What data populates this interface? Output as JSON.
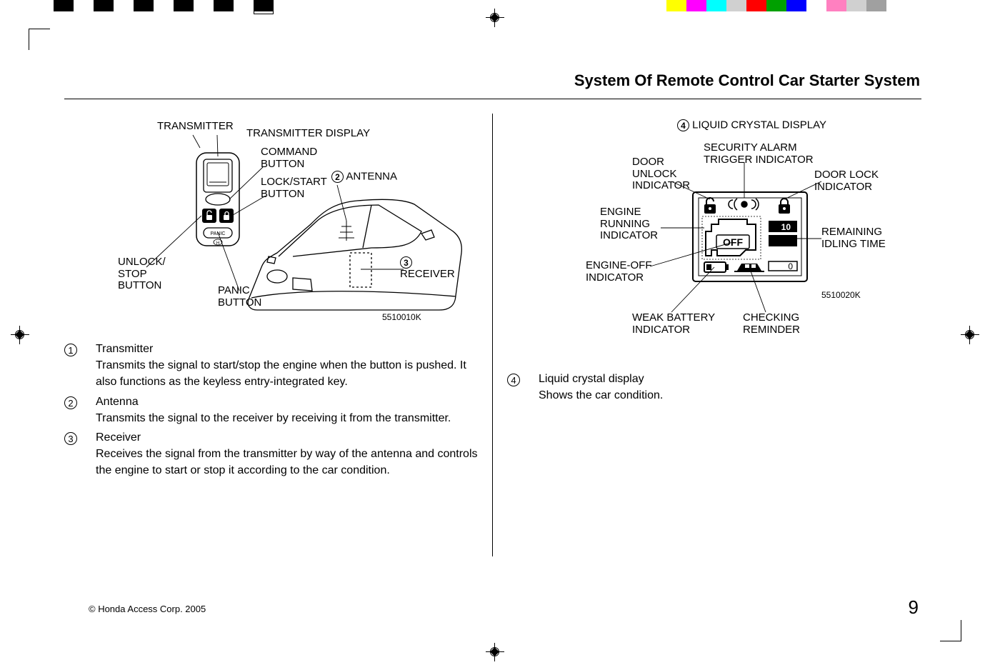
{
  "colorBarLeft": [
    "#000000",
    "#ffffff",
    "#000000",
    "#ffffff",
    "#000000",
    "#ffffff",
    "#000000",
    "#ffffff",
    "#000000",
    "#ffffff",
    "#000000"
  ],
  "colorBarRight": [
    "#ffff00",
    "#ff00ff",
    "#00ffff",
    "#d0d0d0",
    "#ff0000",
    "#00a000",
    "#0000ff",
    "#ffffff",
    "#ff80c0",
    "#d0d0d0",
    "#a0a0a0"
  ],
  "pageTitle": "System Of Remote Control Car Starter System",
  "figure1": {
    "code": "5510010K",
    "labels": {
      "transmitter": "TRANSMITTER",
      "transmitterDisplay": "TRANSMITTER DISPLAY",
      "commandButton": "COMMAND\nBUTTON",
      "lockStartButton": "LOCK/START\nBUTTON",
      "antenna": "ANTENNA",
      "receiver": "RECEIVER",
      "panicButton": "PANIC\nBUTTON",
      "unlockStopButton": "UNLOCK/\nSTOP\nBUTTON"
    },
    "nums": {
      "antenna": "2",
      "receiver": "3"
    },
    "panicText": "PANIC"
  },
  "figure2": {
    "code": "5510020K",
    "title": "LIQUID CRYSTAL DISPLAY",
    "titleNum": "4",
    "labels": {
      "doorUnlock": "DOOR\nUNLOCK\nINDICATOR",
      "securityAlarm": "SECURITY ALARM\nTRIGGER INDICATOR",
      "doorLock": "DOOR LOCK\nINDICATOR",
      "engineRunning": "ENGINE\nRUNNING\nINDICATOR",
      "remainingIdling": "REMAINING\nIDLING TIME",
      "engineOff": "ENGINE-OFF\nINDICATOR",
      "weakBattery": "WEAK BATTERY\nINDICATOR",
      "checkingReminder": "CHECKING\nREMINDER"
    },
    "offText": "OFF",
    "ten": "10",
    "zero": "0"
  },
  "list1": [
    {
      "num": "1",
      "title": "Transmitter",
      "desc": "Transmits the signal to start/stop the engine when the button is pushed.  It also functions as the keyless entry-integrated key."
    },
    {
      "num": "2",
      "title": "Antenna",
      "desc": "Transmits the signal to the receiver by receiving it from the transmitter."
    },
    {
      "num": "3",
      "title": "Receiver",
      "desc": "Receives the signal from the transmitter by way of the antenna and controls the engine to start or stop it according to the car condition."
    }
  ],
  "list2": [
    {
      "num": "4",
      "title": "Liquid crystal display",
      "desc": "Shows the car condition."
    }
  ],
  "footer": {
    "copyright": "© Honda Access Corp. 2005",
    "pageNumber": "9"
  }
}
